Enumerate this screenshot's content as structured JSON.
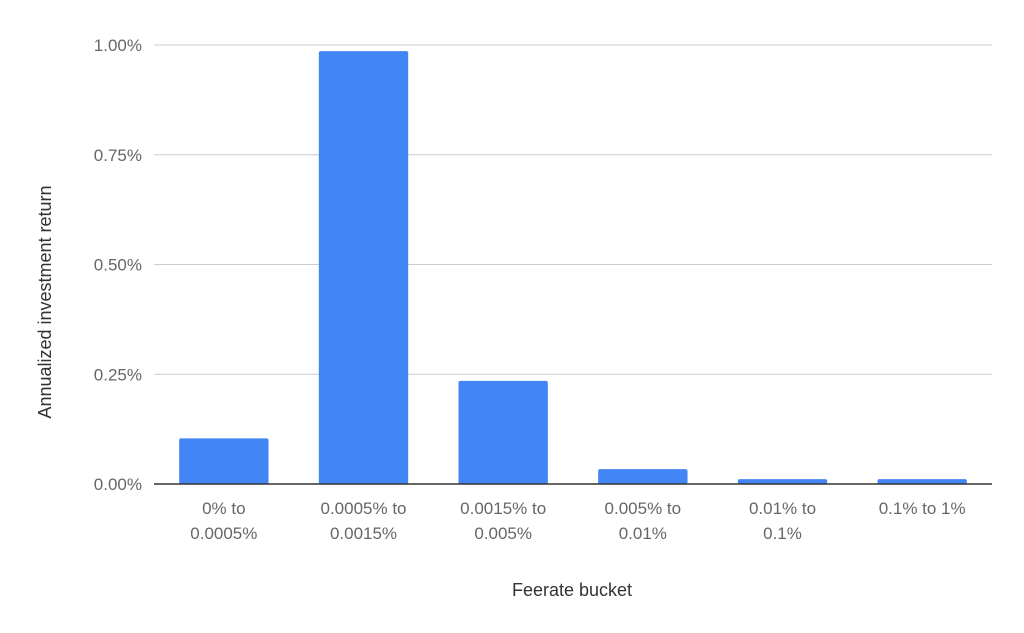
{
  "chart_data": {
    "type": "bar",
    "title": "",
    "xlabel": "Feerate bucket",
    "ylabel": "Annualized investment return",
    "categories": [
      [
        "0% to",
        "0.0005%"
      ],
      [
        "0.0005% to",
        "0.0015%"
      ],
      [
        "0.0015% to",
        "0.005%"
      ],
      [
        "0.005% to",
        "0.01%"
      ],
      [
        "0.01% to",
        "0.1%"
      ],
      [
        "0.1% to 1%"
      ]
    ],
    "values": [
      0.104,
      0.986,
      0.235,
      0.034,
      0.011,
      0.011
    ],
    "ylim": [
      0,
      1.0
    ],
    "yticks": [
      0,
      0.25,
      0.5,
      0.75,
      1.0
    ],
    "ytick_labels": [
      "0.00%",
      "0.25%",
      "0.50%",
      "0.75%",
      "1.00%"
    ],
    "grid": true,
    "legend": "none",
    "colors": {
      "bar": "#4285f4",
      "grid": "#cccccc",
      "axis": "#333333"
    }
  }
}
